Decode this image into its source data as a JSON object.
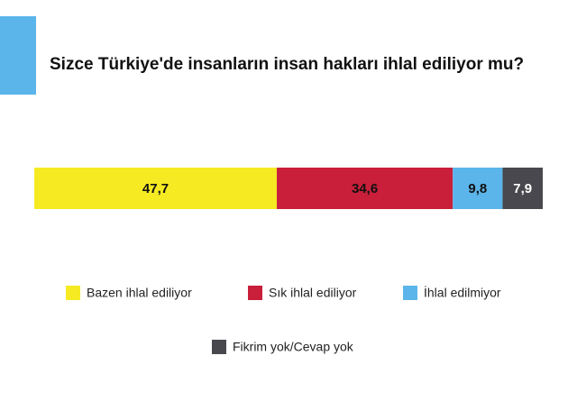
{
  "chart_data": {
    "type": "stacked-bar-100",
    "title": "Sizce Türkiye'de insanların insan hakları ihlal ediliyor mu?",
    "series": [
      {
        "name": "Bazen ihlal ediliyor",
        "color": "#f6ea23",
        "values": [
          47.7
        ],
        "value_labels": [
          "47,7"
        ]
      },
      {
        "name": "Sık ihlal ediliyor",
        "color": "#c91f3a",
        "values": [
          34.6
        ],
        "value_labels": [
          "34,6"
        ]
      },
      {
        "name": "İhlal edilmiyor",
        "color": "#5bb5ea",
        "values": [
          9.8
        ],
        "value_labels": [
          "9,8"
        ]
      },
      {
        "name": "Fikrim yok/Cevap yok",
        "color": "#48484e",
        "values": [
          7.9
        ],
        "value_labels": [
          "7,9"
        ]
      }
    ]
  }
}
